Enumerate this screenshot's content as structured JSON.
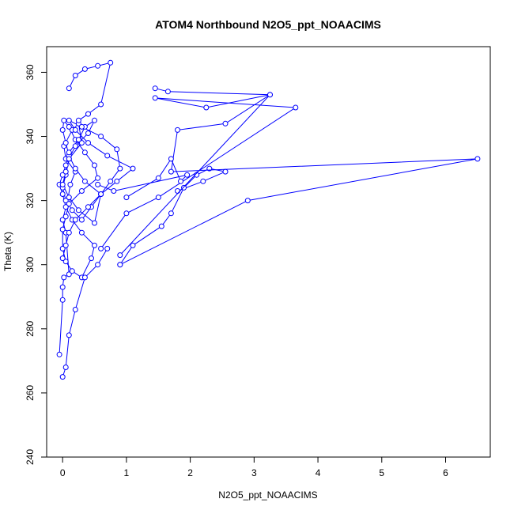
{
  "chart_data": {
    "type": "line",
    "title": "ATOM4 Northbound N2O5_ppt_NOAACIMS",
    "xlabel": "N2O5_ppt_NOAACIMS",
    "ylabel": "Theta (K)",
    "xlim": [
      -0.25,
      6.7
    ],
    "ylim": [
      240,
      368
    ],
    "xticks": [
      0,
      1,
      2,
      3,
      4,
      5,
      6
    ],
    "yticks": [
      240,
      260,
      280,
      300,
      320,
      340,
      360
    ],
    "grid": false,
    "legend": "none",
    "line_color": "#0000ff",
    "marker": "open-circle",
    "series": [
      {
        "x": [
          -0.05,
          0.0,
          0.0,
          0.02,
          0.1,
          0.05,
          0.0,
          0.08,
          0.12,
          0.2,
          0.05,
          0.02,
          0.15,
          0.25,
          0.3,
          0.1,
          0.05,
          0.0,
          0.05,
          0.15,
          0.3,
          0.45,
          0.6,
          0.35,
          0.2,
          0.1,
          0.05,
          0.0,
          0.02,
          0.1,
          0.2,
          0.35,
          0.5,
          0.55,
          0.3,
          0.1,
          0.05,
          0.0,
          0.0,
          0.05,
          0.15,
          0.3,
          0.45,
          0.5,
          0.3,
          0.15,
          0.05,
          0.0,
          -0.05,
          0.0,
          0.05,
          0.1,
          0.25,
          0.35,
          0.5,
          0.4,
          0.2,
          0.1,
          0.05,
          0.0,
          0.1,
          0.25,
          0.5,
          0.6,
          0.75,
          0.9,
          0.85,
          0.6,
          0.3,
          0.1,
          0.2,
          0.4,
          0.7,
          1.1,
          0.85,
          0.6,
          0.4,
          0.2,
          0.1,
          0.05,
          0.0
        ],
        "y": [
          272,
          289,
          293,
          296,
          297,
          310,
          314,
          320,
          325,
          329,
          333,
          337,
          342,
          344,
          338,
          333,
          328,
          324,
          320,
          317,
          314,
          318,
          322,
          326,
          330,
          334,
          338,
          342,
          345,
          343,
          339,
          335,
          331,
          327,
          323,
          319,
          315,
          311,
          305,
          301,
          298,
          296,
          302,
          306,
          310,
          314,
          318,
          322,
          325,
          328,
          331,
          335,
          339,
          343,
          345,
          341,
          337,
          333,
          329,
          325,
          321,
          317,
          313,
          322,
          326,
          330,
          336,
          340,
          343,
          345,
          342,
          338,
          334,
          330,
          326,
          322,
          318,
          314,
          310,
          306,
          302
        ]
      },
      {
        "x": [
          0.0,
          0.05,
          0.1,
          0.2,
          0.35,
          0.55,
          0.7
        ],
        "y": [
          265,
          268,
          278,
          286,
          296,
          300,
          305
        ]
      },
      {
        "x": [
          0.1,
          0.2,
          0.35,
          0.55,
          0.75,
          0.6,
          0.4,
          0.25
        ],
        "y": [
          355,
          359,
          361,
          362,
          363,
          350,
          347,
          345
        ]
      },
      {
        "x": [
          0.9,
          1.1,
          1.55,
          1.7,
          1.9,
          2.1,
          2.3,
          2.55,
          2.2,
          1.8
        ],
        "y": [
          300,
          306,
          312,
          316,
          324,
          328,
          330,
          329,
          326,
          323
        ]
      },
      {
        "x": [
          1.45,
          1.65,
          3.25,
          2.25,
          1.45,
          3.65,
          1.5,
          1.0,
          0.6
        ],
        "y": [
          355,
          354,
          353,
          349,
          352,
          349,
          321,
          316,
          305
        ]
      },
      {
        "x": [
          0.9,
          2.9,
          6.5,
          1.7,
          1.8,
          2.55,
          3.25,
          0.9
        ],
        "y": [
          300,
          320,
          333,
          329,
          342,
          344,
          353,
          303
        ]
      },
      {
        "x": [
          1.0,
          1.5,
          1.7,
          1.85,
          1.95,
          0.8,
          0.55
        ],
        "y": [
          321,
          327,
          333,
          326,
          328,
          323,
          325
        ]
      }
    ]
  }
}
